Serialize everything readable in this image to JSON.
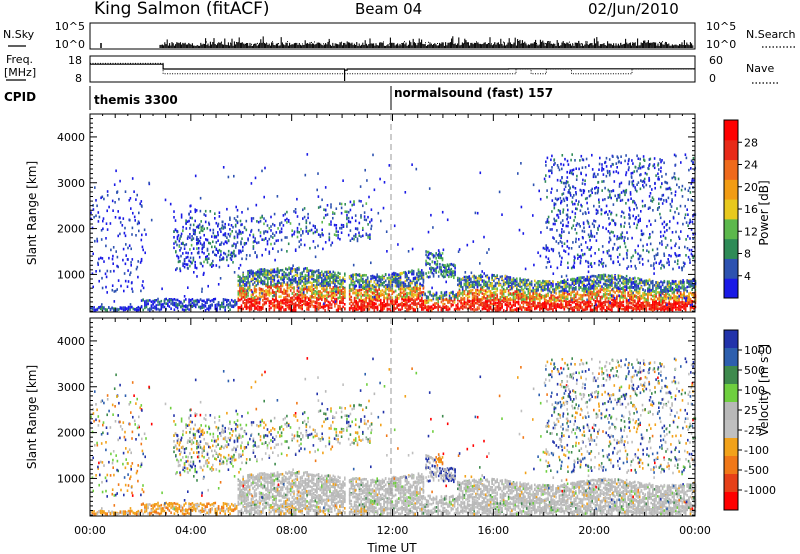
{
  "header": {
    "station": "King Salmon (fitACF)",
    "beam": "Beam 04",
    "date": "02/Jun/2010"
  },
  "top_panels": {
    "nsky_label": "N.Sky",
    "nsearch_label": "N.Search",
    "nsky_ticks": [
      "10^5",
      "10^0"
    ],
    "nsearch_ticks": [
      "10^5",
      "10^0"
    ],
    "freq_label_1": "Freq.",
    "freq_label_2": "[MHz]",
    "freq_ticks": [
      "18",
      "8"
    ],
    "nave_label": "Nave",
    "nave_ticks": [
      "60",
      "0"
    ],
    "cpid_label": "CPID",
    "cpid_1": "themis 3300",
    "cpid_2": "normalsound (fast) 157"
  },
  "chart_data": [
    {
      "type": "heatmap",
      "title": "",
      "xlabel": "",
      "ylabel": "Slant Range [km]",
      "xlim": [
        0,
        24
      ],
      "ylim": [
        180,
        4500
      ],
      "y_ticks": [
        "1000",
        "2000",
        "3000",
        "4000"
      ],
      "colorbar_label": "Power [dB]",
      "colorbar_ticks": [
        "4",
        "8",
        "12",
        "16",
        "20",
        "24",
        "28"
      ],
      "colors": [
        "#1a1ae6",
        "#2d52b0",
        "#2e8b57",
        "#5cb84c",
        "#e8c91e",
        "#f29c14",
        "#ef6a1c",
        "#e82a18",
        "#ff0000"
      ]
    },
    {
      "type": "heatmap",
      "title": "",
      "xlabel": "Time UT",
      "ylabel": "Slant Range [km]",
      "xlim": [
        0,
        24
      ],
      "ylim": [
        180,
        4500
      ],
      "x_ticks": [
        "00:00",
        "04:00",
        "08:00",
        "12:00",
        "16:00",
        "20:00",
        "00:00"
      ],
      "y_ticks": [
        "1000",
        "2000",
        "3000",
        "4000"
      ],
      "colorbar_label": "Velocity",
      "colorbar_unit": "[m s",
      "colorbar_unit_sup": "-1",
      "colorbar_unit_end": "]",
      "colorbar_ticks": [
        "1000",
        "500",
        "100",
        "25",
        "-25",
        "-100",
        "-500",
        "-1000"
      ],
      "colors": [
        "#2233aa",
        "#2d5fae",
        "#3e8a4d",
        "#6fcf3f",
        "#b8b8b8",
        "#c0c0c0",
        "#f2a21a",
        "#f07818",
        "#e64018",
        "#ff0000"
      ]
    }
  ]
}
